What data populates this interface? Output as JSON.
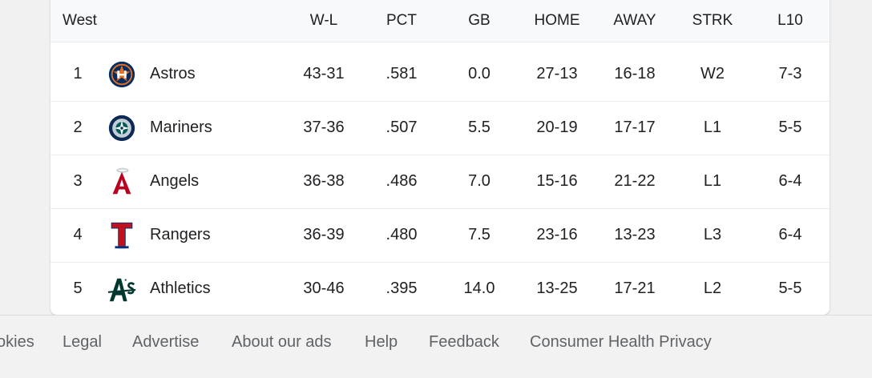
{
  "table": {
    "division": "West",
    "headers": {
      "wl": "W-L",
      "pct": "PCT",
      "gb": "GB",
      "home": "HOME",
      "away": "AWAY",
      "strk": "STRK",
      "l10": "L10"
    },
    "rows": [
      {
        "rank": "1",
        "team": "Astros",
        "logo": "astros-logo",
        "wl": "43-31",
        "pct": ".581",
        "gb": "0.0",
        "home": "27-13",
        "away": "16-18",
        "strk": "W2",
        "l10": "7-3"
      },
      {
        "rank": "2",
        "team": "Mariners",
        "logo": "mariners-logo",
        "wl": "37-36",
        "pct": ".507",
        "gb": "5.5",
        "home": "20-19",
        "away": "17-17",
        "strk": "L1",
        "l10": "5-5"
      },
      {
        "rank": "3",
        "team": "Angels",
        "logo": "angels-logo",
        "wl": "36-38",
        "pct": ".486",
        "gb": "7.0",
        "home": "15-16",
        "away": "21-22",
        "strk": "L1",
        "l10": "6-4"
      },
      {
        "rank": "4",
        "team": "Rangers",
        "logo": "rangers-logo",
        "wl": "36-39",
        "pct": ".480",
        "gb": "7.5",
        "home": "23-16",
        "away": "13-23",
        "strk": "L3",
        "l10": "6-4"
      },
      {
        "rank": "5",
        "team": "Athletics",
        "logo": "athletics-logo",
        "wl": "30-46",
        "pct": ".395",
        "gb": "14.0",
        "home": "13-25",
        "away": "17-21",
        "strk": "L2",
        "l10": "5-5"
      }
    ]
  },
  "footer": {
    "links": [
      "okies",
      "Legal",
      "Advertise",
      "About our ads",
      "Help",
      "Feedback",
      "Consumer Health Privacy"
    ]
  },
  "colors": {
    "astros_navy": "#002d62",
    "astros_orange": "#eb6e1f",
    "mariners_navy": "#0c2c56",
    "mariners_teal": "#005c5c",
    "angels_red": "#ba0021",
    "rangers_blue": "#003278",
    "rangers_red": "#c0111f",
    "athletics_green": "#003831"
  }
}
